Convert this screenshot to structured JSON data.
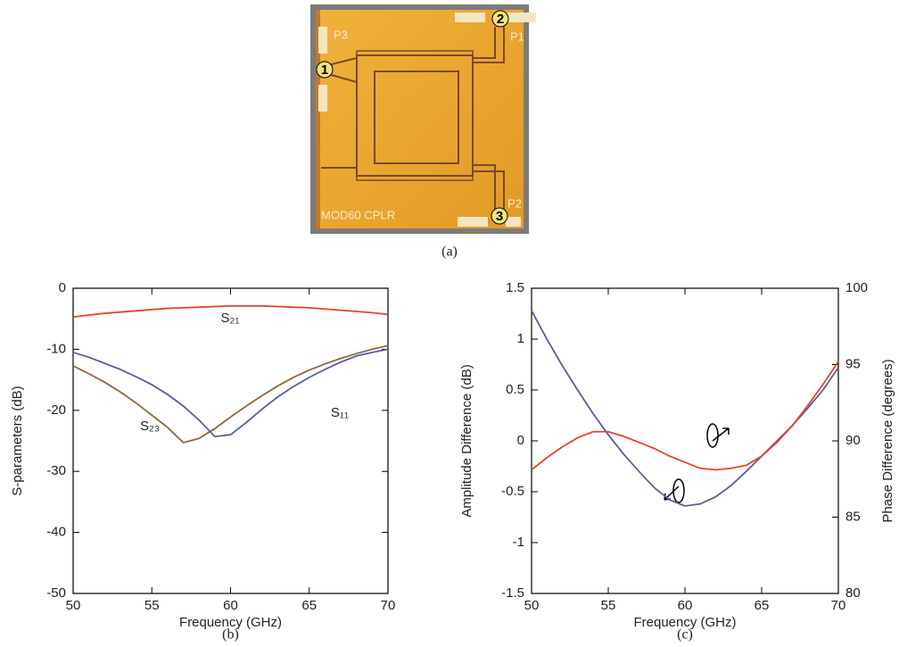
{
  "photo": {
    "caption": "(a)",
    "port_labels": [
      "P3",
      "P1",
      "P2"
    ],
    "chip_label": "MOD60 CPLR",
    "port_numbers": [
      "1",
      "2",
      "3"
    ]
  },
  "chart_data": [
    {
      "type": "line",
      "caption": "(b)",
      "xlabel": "Frequency (GHz)",
      "ylabel": "S-parameters (dB)",
      "x": [
        50,
        51,
        52,
        53,
        54,
        55,
        56,
        57,
        58,
        59,
        60,
        61,
        62,
        63,
        64,
        65,
        66,
        67,
        68,
        69,
        70
      ],
      "xlim": [
        50,
        70
      ],
      "xticks": [
        50,
        55,
        60,
        65,
        70
      ],
      "ylim": [
        -50,
        0
      ],
      "yticks": [
        0,
        -10,
        -20,
        -30,
        -40,
        -50
      ],
      "series": [
        {
          "name": "S₂₁",
          "color": "#e8412c",
          "values": [
            -4.7,
            -4.4,
            -4.1,
            -3.9,
            -3.7,
            -3.5,
            -3.3,
            -3.2,
            -3.1,
            -3.0,
            -2.9,
            -2.9,
            -2.9,
            -3.0,
            -3.1,
            -3.2,
            -3.4,
            -3.6,
            -3.8,
            -4.0,
            -4.3
          ]
        },
        {
          "name": "S₂₃",
          "color": "#8c6a3e",
          "values": [
            -12.7,
            -14.0,
            -15.4,
            -17.0,
            -18.8,
            -20.8,
            -22.8,
            -25.3,
            -24.6,
            -23.0,
            -21.1,
            -19.3,
            -17.6,
            -16.0,
            -14.6,
            -13.4,
            -12.4,
            -11.5,
            -10.7,
            -10.0,
            -9.4
          ]
        },
        {
          "name": "S₁₁",
          "color": "#5a5d9e",
          "values": [
            -10.5,
            -11.3,
            -12.3,
            -13.3,
            -14.5,
            -15.8,
            -17.4,
            -19.3,
            -21.6,
            -24.3,
            -24.0,
            -22.0,
            -19.8,
            -17.8,
            -16.1,
            -14.6,
            -13.3,
            -12.1,
            -11.1,
            -10.5,
            -10.0
          ]
        }
      ]
    },
    {
      "type": "line",
      "caption": "(c)",
      "xlabel": "Frequency (GHz)",
      "ylabel": "Amplitude Difference (dB)",
      "y2label": "Phase Difference (degrees)",
      "x": [
        50,
        51,
        52,
        53,
        54,
        55,
        56,
        57,
        58,
        59,
        60,
        61,
        62,
        63,
        64,
        65,
        66,
        67,
        68,
        69,
        70
      ],
      "xlim": [
        50,
        70
      ],
      "xticks": [
        50,
        55,
        60,
        65,
        70
      ],
      "ylim": [
        -1.5,
        1.5
      ],
      "yticks": [
        1.5,
        1,
        0.5,
        0,
        -0.5,
        -1,
        -1.5
      ],
      "y2lim": [
        80,
        100
      ],
      "y2ticks": [
        80,
        85,
        90,
        95,
        100
      ],
      "series": [
        {
          "color": "#5a5d9e",
          "values": [
            1.28,
            1.0,
            0.74,
            0.5,
            0.27,
            0.06,
            -0.13,
            -0.3,
            -0.46,
            -0.58,
            -0.64,
            -0.62,
            -0.55,
            -0.44,
            -0.3,
            -0.15,
            0.0,
            0.15,
            0.32,
            0.5,
            0.72
          ]
        },
        {
          "color": "#e8412c",
          "axis": "y2",
          "values": [
            88.1,
            88.9,
            89.6,
            90.2,
            90.6,
            90.6,
            90.3,
            89.9,
            89.5,
            89.0,
            88.6,
            88.2,
            88.1,
            88.2,
            88.4,
            89.0,
            89.9,
            91.0,
            92.3,
            93.7,
            95.2
          ]
        }
      ]
    }
  ]
}
